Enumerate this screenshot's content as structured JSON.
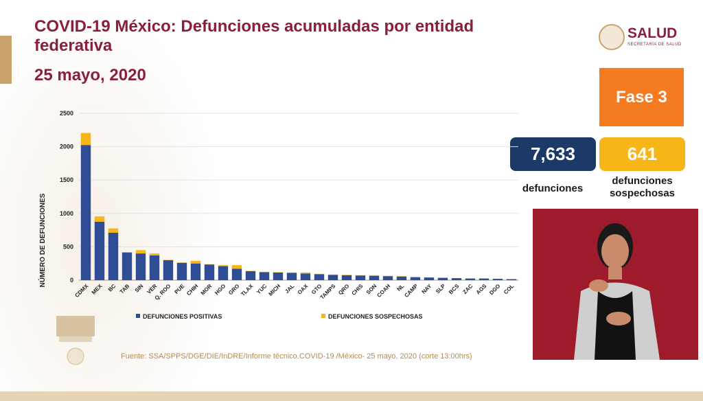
{
  "header": {
    "title": "COVID-19 México: Defunciones acumuladas por entidad federativa",
    "date": "25 mayo, 2020"
  },
  "logo": {
    "name": "SALUD",
    "subtitle": "SECRETARÍA DE SALUD"
  },
  "phase": {
    "label": "Fase 3",
    "color": "#f47b1f"
  },
  "stats": {
    "deaths": {
      "value": "7,633",
      "label": "defunciones",
      "color": "#1b3a67"
    },
    "suspected": {
      "value": "641",
      "label_line1": "defunciones",
      "label_line2": "sospechosas",
      "color": "#f6b619"
    }
  },
  "source": "Fuente: SSA/SPPS/DGE/DIE/InDRE/Informe técnico.COVID-19 /México- 25 mayo, 2020 (corte 13:00hrs)",
  "chart_data": {
    "type": "bar",
    "stacked": true,
    "title": "",
    "xlabel": "",
    "ylabel": "NÚMERO DE DEFUNCIONES",
    "ylim": [
      0,
      2500
    ],
    "yticks": [
      0,
      500,
      1000,
      1500,
      2000,
      2500
    ],
    "grid": true,
    "legend_position": "bottom",
    "categories": [
      "CDMX",
      "MEX",
      "BC",
      "TAB",
      "SIN",
      "VER",
      "Q. ROO",
      "PUE",
      "CHIH",
      "MOR",
      "HGO",
      "GRO",
      "TLAX",
      "YUC",
      "MICH",
      "JAL",
      "OAX",
      "GTO",
      "TAMPS",
      "QRO",
      "CHIS",
      "SON",
      "COAH",
      "NL",
      "CAMP",
      "NAY",
      "SLP",
      "BCS",
      "ZAC",
      "AGS",
      "DGO",
      "COL"
    ],
    "series": [
      {
        "name": "DEFUNCIONES POSITIVAS",
        "color": "#2e4d94",
        "values": [
          2025,
          875,
          710,
          415,
          400,
          370,
          300,
          260,
          250,
          235,
          210,
          170,
          135,
          120,
          115,
          110,
          100,
          90,
          80,
          75,
          70,
          65,
          60,
          55,
          45,
          40,
          35,
          30,
          25,
          25,
          20,
          15
        ]
      },
      {
        "name": "DEFUNCIONES SOSPECHOSAS",
        "color": "#f6b619",
        "values": [
          180,
          80,
          65,
          5,
          50,
          30,
          5,
          5,
          40,
          5,
          15,
          55,
          5,
          5,
          5,
          5,
          15,
          5,
          5,
          5,
          5,
          10,
          5,
          5,
          0,
          0,
          0,
          0,
          0,
          0,
          0,
          0
        ]
      }
    ]
  }
}
